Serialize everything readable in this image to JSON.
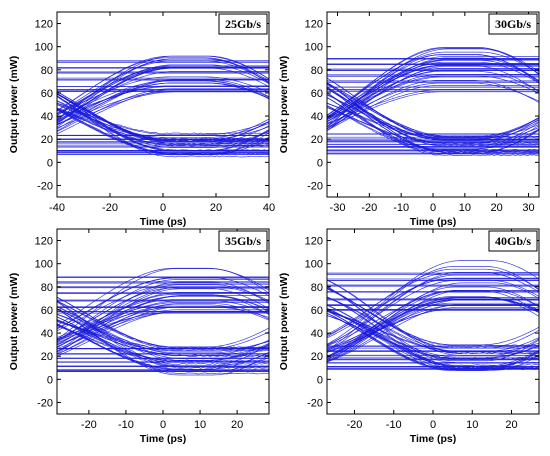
{
  "colors": {
    "trace": "#1a1adc",
    "axis": "#000000",
    "background": "#ffffff"
  },
  "chart_data": [
    {
      "type": "line",
      "subtype": "eye-diagram",
      "label": "25Gb/s",
      "xlabel": "Time (ps)",
      "ylabel": "Output power (mW)",
      "xlim": [
        -40,
        40
      ],
      "ylim": [
        -30,
        130
      ],
      "xticks": [
        -40,
        -20,
        0,
        20,
        40
      ],
      "yticks": [
        -20,
        0,
        20,
        40,
        60,
        80,
        100,
        120
      ],
      "unit_interval_ps": 40,
      "crossing_ps": [
        -32,
        52
      ],
      "levels": {
        "zero": [
          7,
          9,
          10,
          14,
          17,
          20,
          23
        ],
        "one": [
          62,
          63,
          65,
          72,
          78,
          82,
          87
        ]
      },
      "grid": false
    },
    {
      "type": "line",
      "subtype": "eye-diagram",
      "label": "30Gb/s",
      "xlabel": "Time (ps)",
      "ylabel": "Output power (mW)",
      "xlim": [
        -33.3,
        33.3
      ],
      "ylim": [
        -30,
        130
      ],
      "xticks": [
        -30,
        -20,
        -10,
        0,
        10,
        20,
        30
      ],
      "yticks": [
        -20,
        0,
        20,
        40,
        60,
        80,
        100,
        120
      ],
      "unit_interval_ps": 33.3,
      "crossing_ps": [
        -25,
        41.6
      ],
      "levels": {
        "zero": [
          8,
          10,
          13,
          16,
          18,
          21,
          24
        ],
        "one": [
          62,
          65,
          70,
          75,
          80,
          85,
          90
        ]
      },
      "grid": false
    },
    {
      "type": "line",
      "subtype": "eye-diagram",
      "label": "35Gb/s",
      "xlabel": "Time (ps)",
      "ylabel": "Output power (mW)",
      "xlim": [
        -28.6,
        28.6
      ],
      "ylim": [
        -30,
        130
      ],
      "xticks": [
        -20,
        -10,
        0,
        10,
        20
      ],
      "yticks": [
        -20,
        0,
        20,
        40,
        60,
        80,
        100,
        120
      ],
      "unit_interval_ps": 28.6,
      "crossing_ps": [
        -20,
        37.2
      ],
      "levels": {
        "zero": [
          7,
          9,
          12,
          15,
          18,
          22,
          26
        ],
        "one": [
          58,
          62,
          68,
          74,
          80,
          84,
          88
        ]
      },
      "grid": false
    },
    {
      "type": "line",
      "subtype": "eye-diagram",
      "label": "40Gb/s",
      "xlabel": "Time (ps)",
      "ylabel": "Output power (mW)",
      "xlim": [
        -27,
        27
      ],
      "ylim": [
        -30,
        130
      ],
      "xticks": [
        -20,
        -10,
        0,
        10,
        20
      ],
      "yticks": [
        -20,
        0,
        20,
        40,
        60,
        80,
        100,
        120
      ],
      "unit_interval_ps": 25,
      "crossing_ps": [
        -15,
        35
      ],
      "levels": {
        "zero": [
          9,
          11,
          14,
          17,
          20,
          24,
          28
        ],
        "one": [
          60,
          64,
          69,
          75,
          81,
          86,
          91
        ]
      },
      "grid": false
    }
  ]
}
